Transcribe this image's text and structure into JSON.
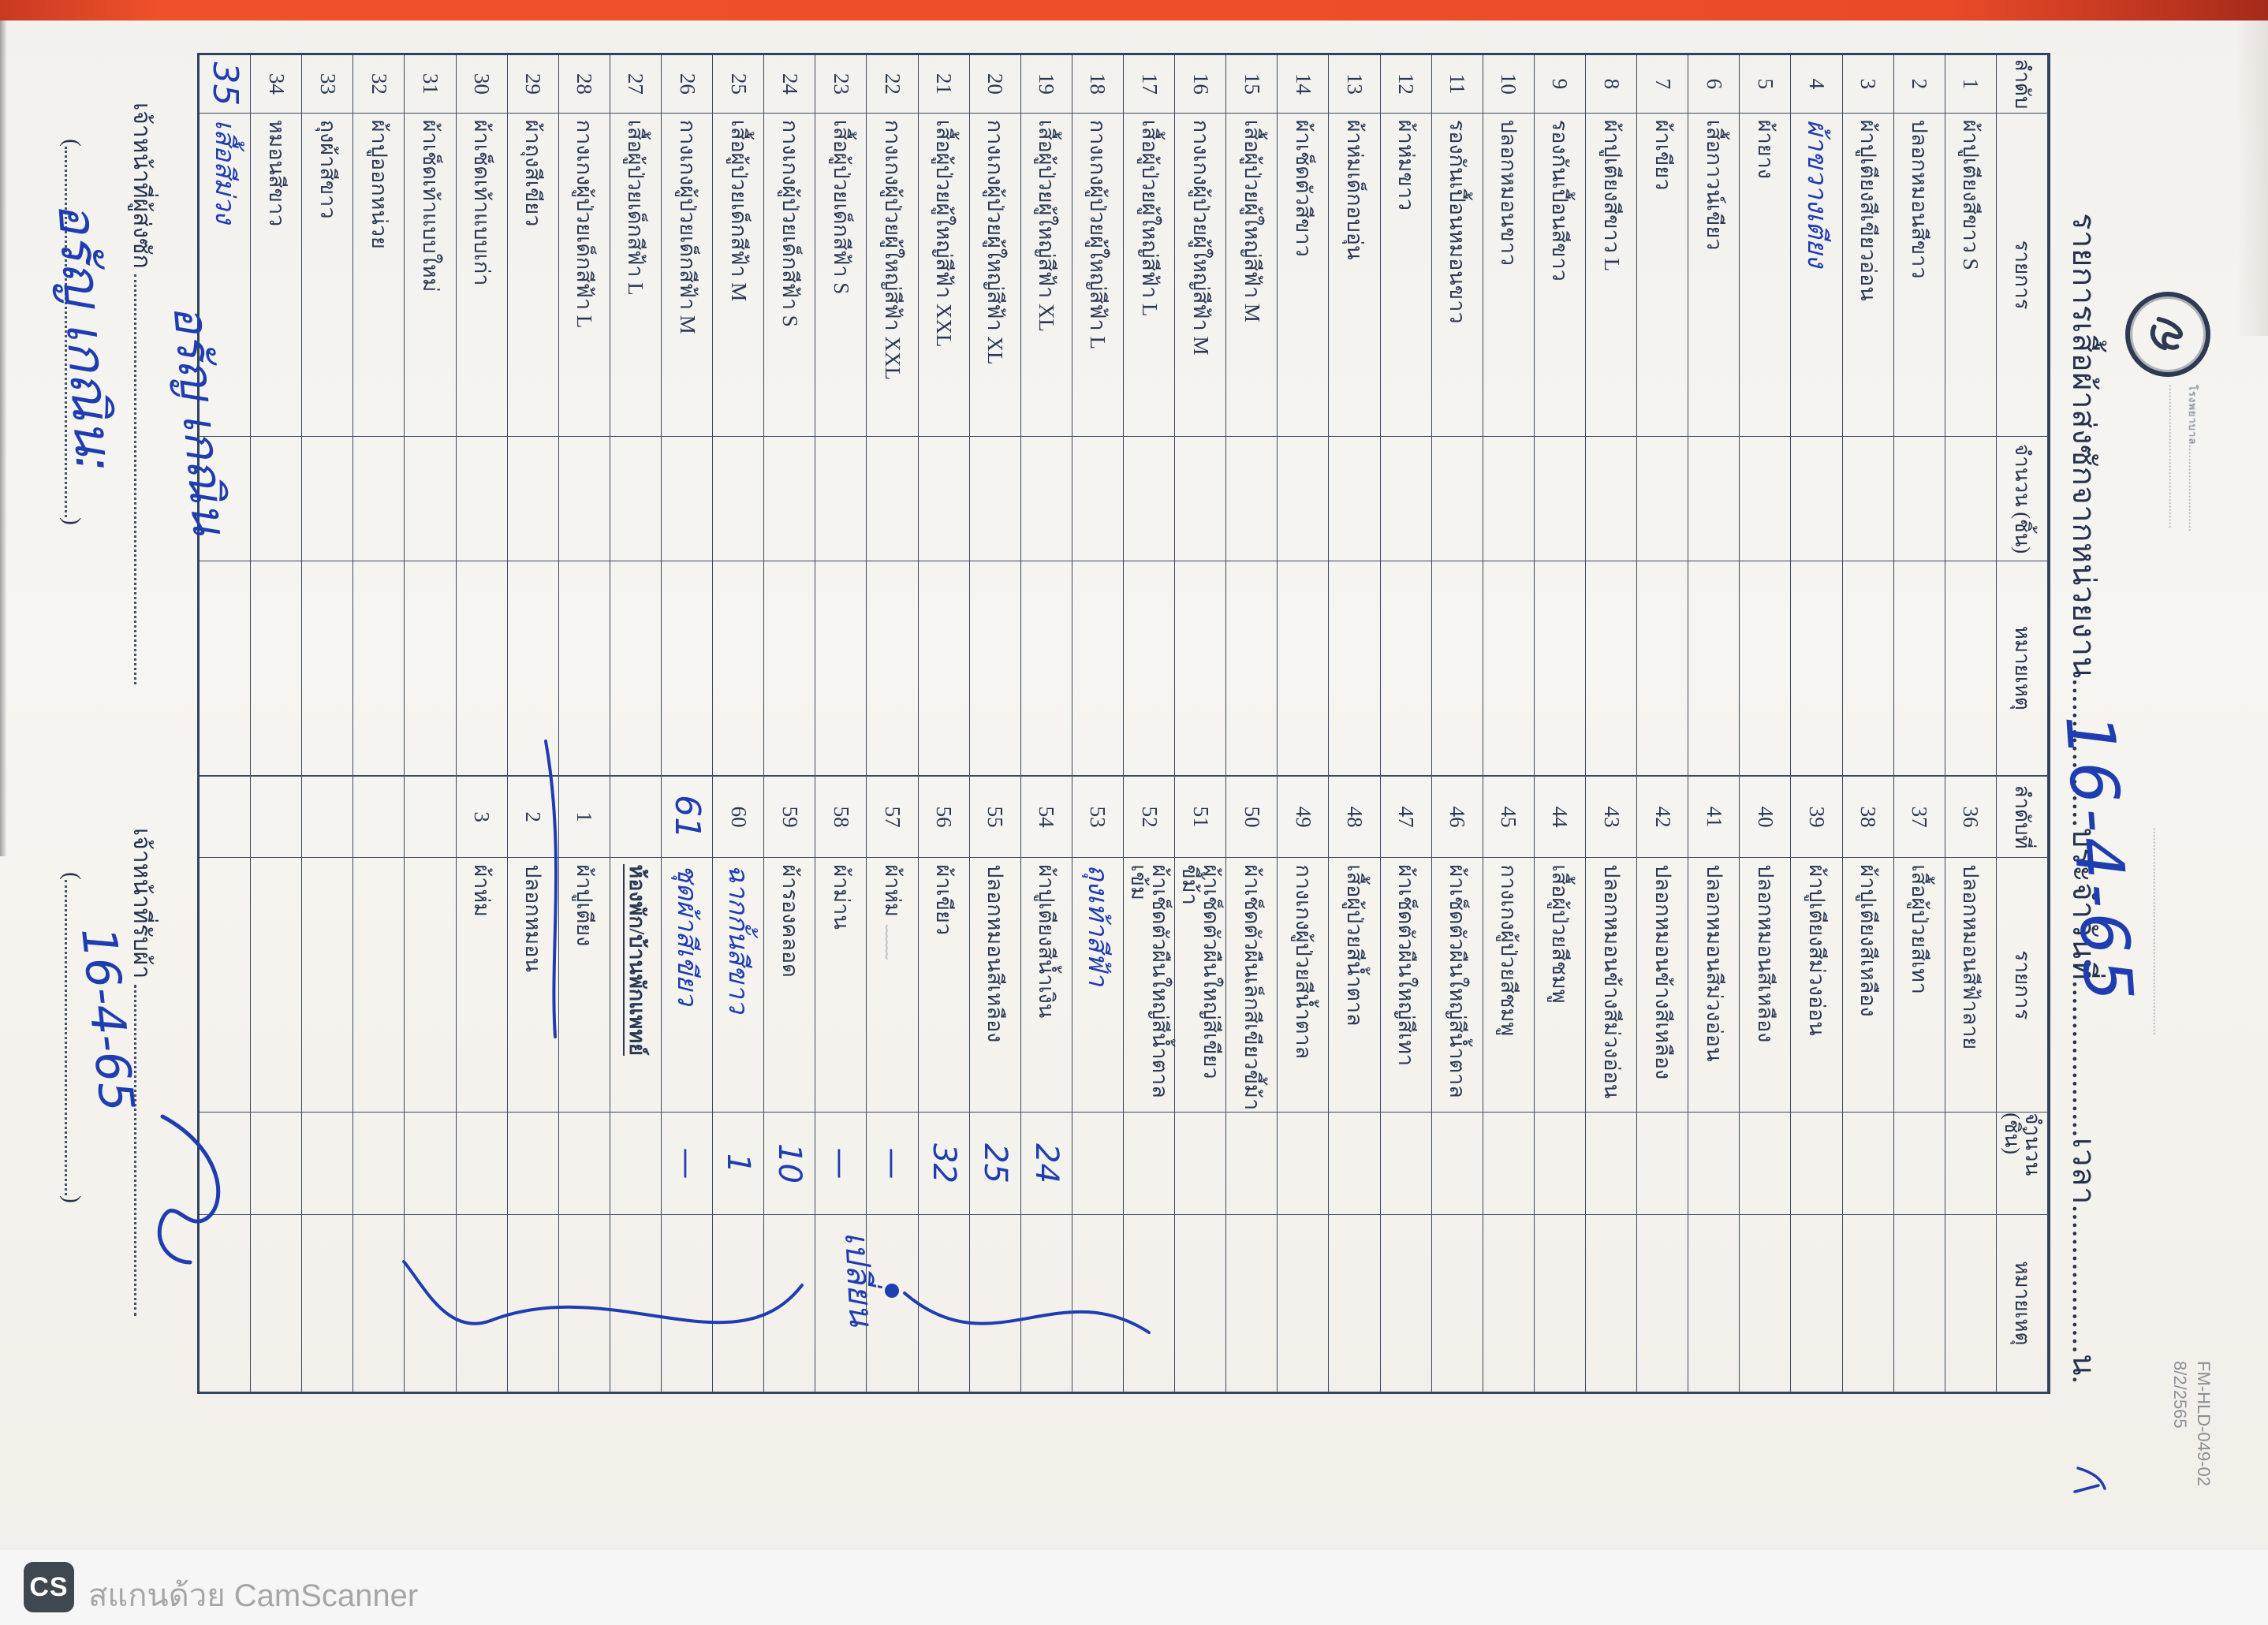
{
  "scan": {
    "stripe_color": "#ee4e2a",
    "footer": {
      "badge": "CS",
      "text": "สแกนด้วย CamScanner"
    }
  },
  "form": {
    "header": {
      "logo_icon": "hospital-seal-icon",
      "small_line1": "โรงพยาบาล..........................",
      "small_line2": "...........................................",
      "small_line3": "..............................................................",
      "form_code": "FM-HLD-049-02",
      "form_code_date": "8/2/2565",
      "title": "รายการเสื้อผ้าส่งซักจากหน่วยงาน..................ประจำวันที่...................เวลา..................น.",
      "handwritten_date": "16-4-65"
    },
    "columns": [
      "ลำดับ",
      "รายการ",
      "จำนวน (ชิ้น)",
      "หมายเหตุ",
      "ลำดับที่",
      "รายการ",
      "จำนวน (ชิ้น)",
      "หมายเหตุ"
    ],
    "rows": [
      {
        "n": "1",
        "item": "ผ้าปูเตียงสีขาว S",
        "n2": "36",
        "item2": "ปลอกหมอนสีฟ้าลาย"
      },
      {
        "n": "2",
        "item": "ปลอกหมอนสีขาว",
        "n2": "37",
        "item2": "เสื้อผู้ป่วยสีเทา"
      },
      {
        "n": "3",
        "item": "ผ้าปูเตียงสีเขียวอ่อน",
        "n2": "38",
        "item2": "ผ้าปูเตียงสีเหลือง"
      },
      {
        "n": "4",
        "item": "ผ้าขวางเตียง",
        "item_hw": true,
        "n2": "39",
        "item2": "ผ้าปูเตียงสีม่วงอ่อน"
      },
      {
        "n": "5",
        "item": "ผ้ายาง",
        "n2": "40",
        "item2": "ปลอกหมอนสีเหลือง"
      },
      {
        "n": "6",
        "item": "เสื้อกาวน์เขียว",
        "n2": "41",
        "item2": "ปลอกหมอนสีม่วงอ่อน"
      },
      {
        "n": "7",
        "item": "ผ้าเขียว",
        "n2": "42",
        "item2": "ปลอกหมอนข้างสีเหลือง"
      },
      {
        "n": "8",
        "item": "ผ้าปูเตียงสีขาว L",
        "n2": "43",
        "item2": "ปลอกหมอนข้างสีม่วงอ่อน"
      },
      {
        "n": "9",
        "item": "รองกันเปื้อนสีขาว",
        "n2": "44",
        "item2": "เสื้อผู้ป่วยสีชมพู"
      },
      {
        "n": "10",
        "item": "ปลอกหมอนขาว",
        "n2": "45",
        "item2": "กางเกงผู้ป่วยสีชมพู"
      },
      {
        "n": "11",
        "item": "รองกันเปื้อนหมอนขาว",
        "n2": "46",
        "item2": "ผ้าเช็ดตัวผืนใหญ่สีน้ำตาล"
      },
      {
        "n": "12",
        "item": "ผ้าห่มขาว",
        "n2": "47",
        "item2": "ผ้าเช็ดตัวผืนใหญ่สีเทา"
      },
      {
        "n": "13",
        "item": "ผ้าห่มเด็กอบอุ่น",
        "n2": "48",
        "item2": "เสื้อผู้ป่วยสีน้ำตาล"
      },
      {
        "n": "14",
        "item": "ผ้าเช็ดตัวสีขาว",
        "n2": "49",
        "item2": "กางเกงผู้ป่วยสีน้ำตาล"
      },
      {
        "n": "15",
        "item": "เสื้อผู้ป่วยผู้ใหญ่สีฟ้า M",
        "n2": "50",
        "item2": "ผ้าเช็ดตัวผืนเล็กสีเขียวขี้ม้า"
      },
      {
        "n": "16",
        "item": "กางเกงผู้ป่วยผู้ใหญ่สีฟ้า M",
        "n2": "51",
        "item2": "ผ้าเช็ดตัวผืนใหญ่สีเขียวขี้ม้า"
      },
      {
        "n": "17",
        "item": "เสื้อผู้ป่วยผู้ใหญ่สีฟ้า L",
        "n2": "52",
        "item2": "ผ้าเช็ดตัวผืนใหญ่สีน้ำตาลเข้ม"
      },
      {
        "n": "18",
        "item": "กางเกงผู้ป่วยผู้ใหญ่สีฟ้า L",
        "n2": "53",
        "item2": "ถุงเท้าสีฟ้า",
        "item2_hw": true
      },
      {
        "n": "19",
        "item": "เสื้อผู้ป่วยผู้ใหญ่สีฟ้า XL",
        "n2": "54",
        "item2": "ผ้าปูเตียงสีน้ำเงิน",
        "qty2": "24"
      },
      {
        "n": "20",
        "item": "กางเกงผู้ป่วยผู้ใหญ่สีฟ้า XL",
        "n2": "55",
        "item2": "ปลอกหมอนสีเหลือง",
        "qty2": "25"
      },
      {
        "n": "21",
        "item": "เสื้อผู้ป่วยผู้ใหญ่สีฟ้า XXL",
        "n2": "56",
        "item2": "ผ้าเขียว",
        "qty2": "32"
      },
      {
        "n": "22",
        "item": "กางเกงผู้ป่วยผู้ใหญ่สีฟ้า XXL",
        "n2": "57",
        "item2": "ผ้าห่ม",
        "item2_pencil": "﹏﹏",
        "qty2": "—"
      },
      {
        "n": "23",
        "item": "เสื้อผู้ป่วยเด็กสีฟ้า S",
        "n2": "58",
        "item2": "ผ้าม่าน",
        "qty2": "—"
      },
      {
        "n": "24",
        "item": "กางเกงผู้ป่วยเด็กสีฟ้า S",
        "n2": "59",
        "item2": "ผ้ารองคลอด",
        "qty2": "10"
      },
      {
        "n": "25",
        "item": "เสื้อผู้ป่วยเด็กสีฟ้า M",
        "n2": "60",
        "item2": "ฉากกั้นสีขาว",
        "item2_hw": true,
        "qty2": "1"
      },
      {
        "n": "26",
        "item": "กางเกงผู้ป่วยเด็กสีฟ้า M",
        "n2": "61",
        "n2_hw": true,
        "item2": "ชุดผ้าสีเขียว",
        "item2_hw": true,
        "qty2": "—"
      },
      {
        "n": "27",
        "item": "เสื้อผู้ป่วยเด็กสีฟ้า L",
        "heading2": "ห้องพัก/บ้านพักแพทย์"
      },
      {
        "n": "28",
        "item": "กางเกงผู้ป่วยเด็กสีฟ้า L",
        "n2": "1",
        "item2": "ผ้าปูเตียง"
      },
      {
        "n": "29",
        "item": "ผ้าถุงสีเขียว",
        "n2": "2",
        "item2": "ปลอกหมอน"
      },
      {
        "n": "30",
        "item": "ผ้าเช็ดเท้าแบบเก่า",
        "n2": "3",
        "item2": "ผ้าห่ม"
      },
      {
        "n": "31",
        "item": "ผ้าเช็ดเท้าแบบใหม่"
      },
      {
        "n": "32",
        "item": "ผ้าปูออกหน่วย"
      },
      {
        "n": "33",
        "item": "ถุงผ้าสีขาว"
      },
      {
        "n": "34",
        "item": "หมอนสีขาว"
      },
      {
        "n": "35",
        "n_hw": true,
        "item": "เสื้อสีม่วง",
        "item_hw": true
      }
    ],
    "annotation": {
      "text": "เปลี่ยน",
      "color": "#1e3db0"
    },
    "signatures": {
      "sender_label": "เจ้าหน้าที่ผู้ส่งซัก",
      "sender_signature": "อรัญ เกณิน",
      "sender_name_in_parens": "อรัญ เกณิน:",
      "receiver_label": "เจ้าหน้าที่รับผ้า",
      "receiver_date": "16-4-65"
    }
  }
}
